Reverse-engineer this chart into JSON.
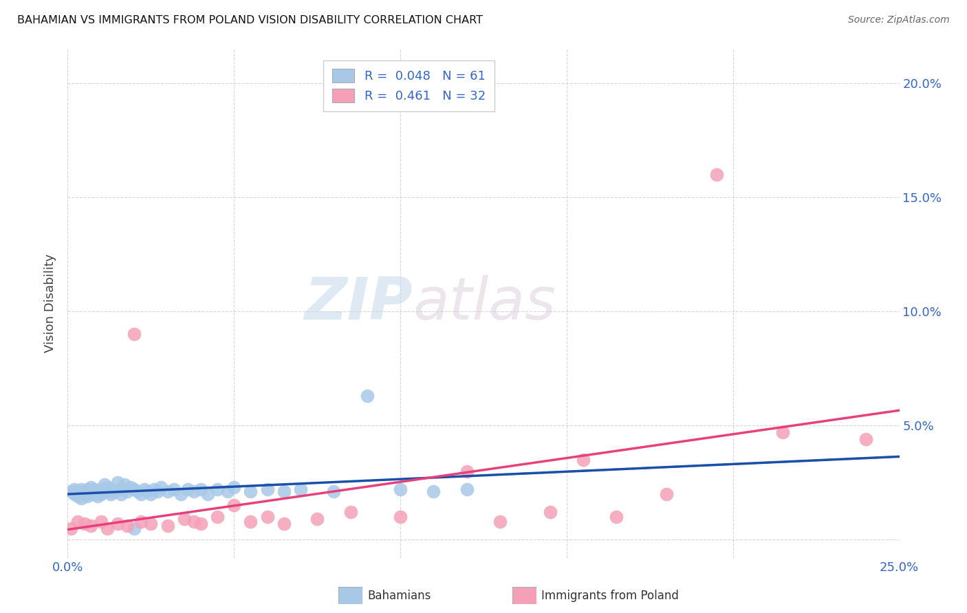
{
  "title": "BAHAMIAN VS IMMIGRANTS FROM POLAND VISION DISABILITY CORRELATION CHART",
  "source": "Source: ZipAtlas.com",
  "ylabel": "Vision Disability",
  "xlim": [
    0.0,
    0.25
  ],
  "ylim": [
    -0.008,
    0.215
  ],
  "bahamian_R": 0.048,
  "bahamian_N": 61,
  "poland_R": 0.461,
  "poland_N": 32,
  "bahamian_color": "#a8c8e8",
  "poland_color": "#f4a0b8",
  "bahamian_line_color": "#1a4faa",
  "poland_line_color": "#e8407a",
  "watermark_zip": "ZIP",
  "watermark_atlas": "atlas",
  "bahamian_x": [
    0.001,
    0.002,
    0.002,
    0.003,
    0.003,
    0.004,
    0.004,
    0.005,
    0.005,
    0.006,
    0.006,
    0.006,
    0.007,
    0.007,
    0.008,
    0.008,
    0.009,
    0.009,
    0.01,
    0.01,
    0.011,
    0.012,
    0.012,
    0.013,
    0.013,
    0.014,
    0.015,
    0.016,
    0.016,
    0.017,
    0.018,
    0.019,
    0.02,
    0.021,
    0.022,
    0.023,
    0.024,
    0.025,
    0.026,
    0.027,
    0.028,
    0.03,
    0.032,
    0.034,
    0.036,
    0.038,
    0.04,
    0.042,
    0.045,
    0.048,
    0.05,
    0.055,
    0.06,
    0.065,
    0.07,
    0.08,
    0.09,
    0.1,
    0.11,
    0.12,
    0.02
  ],
  "bahamian_y": [
    0.021,
    0.02,
    0.022,
    0.019,
    0.021,
    0.018,
    0.022,
    0.02,
    0.021,
    0.019,
    0.022,
    0.02,
    0.021,
    0.023,
    0.02,
    0.022,
    0.021,
    0.019,
    0.022,
    0.02,
    0.024,
    0.023,
    0.021,
    0.022,
    0.02,
    0.021,
    0.025,
    0.022,
    0.02,
    0.024,
    0.021,
    0.023,
    0.022,
    0.021,
    0.02,
    0.022,
    0.021,
    0.02,
    0.022,
    0.021,
    0.023,
    0.021,
    0.022,
    0.02,
    0.022,
    0.021,
    0.022,
    0.02,
    0.022,
    0.021,
    0.023,
    0.021,
    0.022,
    0.021,
    0.022,
    0.021,
    0.063,
    0.022,
    0.021,
    0.022,
    0.005
  ],
  "poland_x": [
    0.001,
    0.003,
    0.005,
    0.007,
    0.01,
    0.012,
    0.015,
    0.018,
    0.02,
    0.022,
    0.025,
    0.03,
    0.035,
    0.038,
    0.04,
    0.045,
    0.05,
    0.055,
    0.06,
    0.065,
    0.075,
    0.085,
    0.1,
    0.12,
    0.13,
    0.145,
    0.155,
    0.165,
    0.18,
    0.195,
    0.215,
    0.24
  ],
  "poland_y": [
    0.005,
    0.008,
    0.007,
    0.006,
    0.008,
    0.005,
    0.007,
    0.006,
    0.09,
    0.008,
    0.007,
    0.006,
    0.009,
    0.008,
    0.007,
    0.01,
    0.015,
    0.008,
    0.01,
    0.007,
    0.009,
    0.012,
    0.01,
    0.03,
    0.008,
    0.012,
    0.035,
    0.01,
    0.02,
    0.16,
    0.047,
    0.044
  ]
}
